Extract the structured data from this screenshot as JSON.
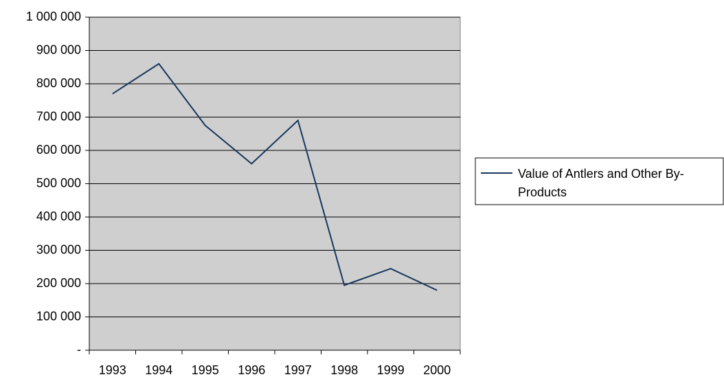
{
  "chart_data": {
    "type": "line",
    "categories": [
      "1993",
      "1994",
      "1995",
      "1996",
      "1997",
      "1998",
      "1999",
      "2000"
    ],
    "series": [
      {
        "name": "Value of Antlers and Other By-Products",
        "color": "#17375e",
        "values": [
          770000,
          860000,
          675000,
          560000,
          690000,
          195000,
          245000,
          180000
        ]
      }
    ],
    "ylim": [
      0,
      1000000
    ],
    "yticks": [
      {
        "value": 0,
        "label": "-"
      },
      {
        "value": 100000,
        "label": "100 000"
      },
      {
        "value": 200000,
        "label": "200 000"
      },
      {
        "value": 300000,
        "label": "300 000"
      },
      {
        "value": 400000,
        "label": "400 000"
      },
      {
        "value": 500000,
        "label": "500 000"
      },
      {
        "value": 600000,
        "label": "600 000"
      },
      {
        "value": 700000,
        "label": "700 000"
      },
      {
        "value": 800000,
        "label": "800 000"
      },
      {
        "value": 900000,
        "label": "900 000"
      },
      {
        "value": 1000000,
        "label": "1 000 000"
      }
    ],
    "grid": true,
    "legend": "right",
    "plot_background": "#cfcfcf"
  }
}
